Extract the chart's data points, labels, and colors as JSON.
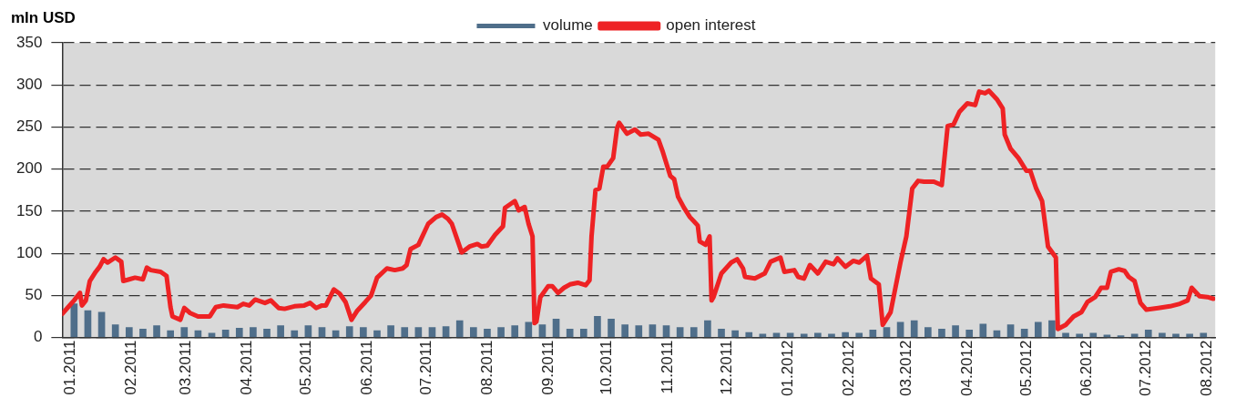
{
  "chart_data": {
    "type": "line",
    "ylabel": "mln USD",
    "grid": "y",
    "legend": "top",
    "xlim": [
      "2010-12-28",
      "2012-08-05"
    ],
    "ylim": [
      0,
      350
    ],
    "yticks": [
      0,
      50,
      100,
      150,
      200,
      250,
      300,
      350
    ],
    "xticks": [
      {
        "value": "2011-01-01",
        "label": "01.2011"
      },
      {
        "value": "2011-02-01",
        "label": "02.2011"
      },
      {
        "value": "2011-03-01",
        "label": "03.2011"
      },
      {
        "value": "2011-04-01",
        "label": "04.2011"
      },
      {
        "value": "2011-05-01",
        "label": "05.2011"
      },
      {
        "value": "2011-06-01",
        "label": "06.2011"
      },
      {
        "value": "2011-07-01",
        "label": "07.2011"
      },
      {
        "value": "2011-08-01",
        "label": "08.2011"
      },
      {
        "value": "2011-09-01",
        "label": "09.2011"
      },
      {
        "value": "2011-10-01",
        "label": "10.2011"
      },
      {
        "value": "2011-11-01",
        "label": "11.2011"
      },
      {
        "value": "2011-12-01",
        "label": "12.2011"
      },
      {
        "value": "2012-01-01",
        "label": "01.2012"
      },
      {
        "value": "2012-02-01",
        "label": "02.2012"
      },
      {
        "value": "2012-03-01",
        "label": "03.2012"
      },
      {
        "value": "2012-04-01",
        "label": "04.2012"
      },
      {
        "value": "2012-05-01",
        "label": "05.2012"
      },
      {
        "value": "2012-06-01",
        "label": "06.2012"
      },
      {
        "value": "2012-07-01",
        "label": "07.2012"
      },
      {
        "value": "2012-08-01",
        "label": "08.2012"
      }
    ],
    "series": [
      {
        "name": "volume",
        "type": "bar",
        "color": "#4f6e8a",
        "x": [
          "2011-01-03",
          "2011-01-10",
          "2011-01-17",
          "2011-01-24",
          "2011-01-31",
          "2011-02-07",
          "2011-02-14",
          "2011-02-21",
          "2011-02-28",
          "2011-03-07",
          "2011-03-14",
          "2011-03-21",
          "2011-03-28",
          "2011-04-04",
          "2011-04-11",
          "2011-04-18",
          "2011-04-25",
          "2011-05-02",
          "2011-05-09",
          "2011-05-16",
          "2011-05-23",
          "2011-05-30",
          "2011-06-06",
          "2011-06-13",
          "2011-06-20",
          "2011-06-27",
          "2011-07-04",
          "2011-07-11",
          "2011-07-18",
          "2011-07-25",
          "2011-08-01",
          "2011-08-08",
          "2011-08-15",
          "2011-08-22",
          "2011-08-29",
          "2011-09-05",
          "2011-09-12",
          "2011-09-19",
          "2011-09-26",
          "2011-10-03",
          "2011-10-10",
          "2011-10-17",
          "2011-10-24",
          "2011-10-31",
          "2011-11-07",
          "2011-11-14",
          "2011-11-21",
          "2011-11-28",
          "2011-12-05",
          "2011-12-12",
          "2011-12-19",
          "2011-12-26",
          "2012-01-02",
          "2012-01-09",
          "2012-01-16",
          "2012-01-23",
          "2012-01-30",
          "2012-02-06",
          "2012-02-13",
          "2012-02-20",
          "2012-02-27",
          "2012-03-05",
          "2012-03-12",
          "2012-03-19",
          "2012-03-26",
          "2012-04-02",
          "2012-04-09",
          "2012-04-16",
          "2012-04-23",
          "2012-04-30",
          "2012-05-07",
          "2012-05-14",
          "2012-05-21",
          "2012-05-28",
          "2012-06-04",
          "2012-06-11",
          "2012-06-18",
          "2012-06-25",
          "2012-07-02",
          "2012-07-09",
          "2012-07-16",
          "2012-07-23",
          "2012-07-30"
        ],
        "values": [
          40,
          32,
          30,
          15,
          12,
          10,
          14,
          8,
          12,
          8,
          5,
          9,
          11,
          12,
          10,
          14,
          8,
          14,
          12,
          8,
          13,
          12,
          8,
          14,
          12,
          12,
          12,
          13,
          20,
          12,
          10,
          12,
          14,
          18,
          15,
          22,
          10,
          10,
          25,
          22,
          15,
          14,
          15,
          14,
          12,
          12,
          20,
          10,
          8,
          6,
          4,
          5,
          5,
          4,
          5,
          4,
          6,
          5,
          9,
          12,
          18,
          20,
          12,
          10,
          14,
          9,
          16,
          8,
          15,
          10,
          18,
          20,
          5,
          4,
          5,
          3,
          2,
          4,
          9,
          5,
          4,
          4,
          5
        ]
      },
      {
        "name": "open interest",
        "color": "#ee2224",
        "x": [
          "2010-12-28",
          "2010-12-31",
          "2011-01-03",
          "2011-01-06",
          "2011-01-07",
          "2011-01-09",
          "2011-01-11",
          "2011-01-14",
          "2011-01-16",
          "2011-01-18",
          "2011-01-20",
          "2011-01-24",
          "2011-01-27",
          "2011-01-28",
          "2011-01-31",
          "2011-02-03",
          "2011-02-07",
          "2011-02-09",
          "2011-02-11",
          "2011-02-16",
          "2011-02-19",
          "2011-02-21",
          "2011-02-22",
          "2011-02-26",
          "2011-02-28",
          "2011-03-03",
          "2011-03-07",
          "2011-03-13",
          "2011-03-16",
          "2011-03-20",
          "2011-03-27",
          "2011-03-30",
          "2011-04-02",
          "2011-04-05",
          "2011-04-10",
          "2011-04-13",
          "2011-04-17",
          "2011-04-20",
          "2011-04-25",
          "2011-04-30",
          "2011-05-03",
          "2011-05-06",
          "2011-05-09",
          "2011-05-11",
          "2011-05-15",
          "2011-05-18",
          "2011-05-21",
          "2011-05-24",
          "2011-05-27",
          "2011-05-31",
          "2011-06-03",
          "2011-06-06",
          "2011-06-11",
          "2011-06-15",
          "2011-06-19",
          "2011-06-21",
          "2011-06-23",
          "2011-06-27",
          "2011-06-29",
          "2011-07-02",
          "2011-07-06",
          "2011-07-09",
          "2011-07-12",
          "2011-07-14",
          "2011-07-19",
          "2011-07-23",
          "2011-07-27",
          "2011-07-29",
          "2011-08-01",
          "2011-08-05",
          "2011-08-09",
          "2011-08-10",
          "2011-08-15",
          "2011-08-17",
          "2011-08-20",
          "2011-08-22",
          "2011-08-24",
          "2011-08-25",
          "2011-08-26",
          "2011-08-28",
          "2011-09-01",
          "2011-09-03",
          "2011-09-06",
          "2011-09-09",
          "2011-09-12",
          "2011-09-16",
          "2011-09-20",
          "2011-09-22",
          "2011-09-23",
          "2011-09-25",
          "2011-09-27",
          "2011-09-29",
          "2011-10-01",
          "2011-10-04",
          "2011-10-06",
          "2011-10-07",
          "2011-10-11",
          "2011-10-15",
          "2011-10-18",
          "2011-10-22",
          "2011-10-27",
          "2011-10-29",
          "2011-11-02",
          "2011-11-04",
          "2011-11-06",
          "2011-11-09",
          "2011-11-12",
          "2011-11-16",
          "2011-11-17",
          "2011-11-20",
          "2011-11-22",
          "2011-11-23",
          "2011-11-24",
          "2011-11-28",
          "2011-12-03",
          "2011-12-06",
          "2011-12-09",
          "2011-12-10",
          "2011-12-15",
          "2011-12-20",
          "2011-12-23",
          "2011-12-28",
          "2011-12-30",
          "2012-01-04",
          "2012-01-06",
          "2012-01-09",
          "2012-01-12",
          "2012-01-16",
          "2012-01-20",
          "2012-01-24",
          "2012-01-26",
          "2012-01-30",
          "2012-02-03",
          "2012-02-06",
          "2012-02-10",
          "2012-02-12",
          "2012-02-16",
          "2012-02-18",
          "2012-02-22",
          "2012-02-27",
          "2012-03-01",
          "2012-03-04",
          "2012-03-07",
          "2012-03-10",
          "2012-03-15",
          "2012-03-19",
          "2012-03-22",
          "2012-03-25",
          "2012-03-28",
          "2012-04-01",
          "2012-04-05",
          "2012-04-07",
          "2012-04-10",
          "2012-04-12",
          "2012-04-16",
          "2012-04-19",
          "2012-04-20",
          "2012-04-23",
          "2012-04-27",
          "2012-05-01",
          "2012-05-03",
          "2012-05-06",
          "2012-05-09",
          "2012-05-12",
          "2012-05-16",
          "2012-05-17",
          "2012-05-21",
          "2012-05-25",
          "2012-05-29",
          "2012-06-01",
          "2012-06-05",
          "2012-06-08",
          "2012-06-11",
          "2012-06-13",
          "2012-06-17",
          "2012-06-20",
          "2012-06-22",
          "2012-06-25",
          "2012-06-28",
          "2012-07-01",
          "2012-07-07",
          "2012-07-13",
          "2012-07-18",
          "2012-07-22",
          "2012-07-24",
          "2012-07-28",
          "2012-08-01",
          "2012-08-04"
        ],
        "values": [
          28,
          36,
          44,
          53,
          38,
          44,
          67,
          78,
          84,
          93,
          89,
          95,
          90,
          67,
          69,
          71,
          69,
          83,
          80,
          78,
          73,
          36,
          25,
          21,
          35,
          29,
          25,
          25,
          36,
          38,
          36,
          40,
          38,
          45,
          41,
          44,
          35,
          34,
          37,
          38,
          41,
          35,
          38,
          38,
          57,
          52,
          42,
          21,
          32,
          42,
          50,
          71,
          82,
          80,
          82,
          86,
          105,
          110,
          120,
          135,
          143,
          146,
          141,
          135,
          101,
          108,
          111,
          108,
          109,
          122,
          132,
          154,
          162,
          151,
          155,
          135,
          120,
          17,
          19,
          48,
          61,
          61,
          53,
          59,
          63,
          65,
          62,
          68,
          120,
          175,
          177,
          203,
          203,
          213,
          249,
          255,
          242,
          247,
          241,
          242,
          235,
          222,
          192,
          188,
          167,
          154,
          143,
          133,
          114,
          110,
          120,
          44,
          48,
          76,
          89,
          93,
          82,
          72,
          70,
          76,
          90,
          95,
          78,
          80,
          72,
          70,
          86,
          76,
          90,
          87,
          94,
          84,
          91,
          89,
          97,
          70,
          63,
          15,
          30,
          89,
          120,
          177,
          186,
          185,
          185,
          181,
          251,
          253,
          268,
          278,
          276,
          292,
          290,
          293,
          283,
          272,
          241,
          224,
          213,
          198,
          198,
          177,
          162,
          108,
          95,
          10,
          15,
          25,
          30,
          42,
          48,
          59,
          59,
          78,
          81,
          79,
          72,
          67,
          41,
          33,
          35,
          37,
          40,
          44,
          59,
          49,
          48,
          46
        ]
      }
    ]
  }
}
